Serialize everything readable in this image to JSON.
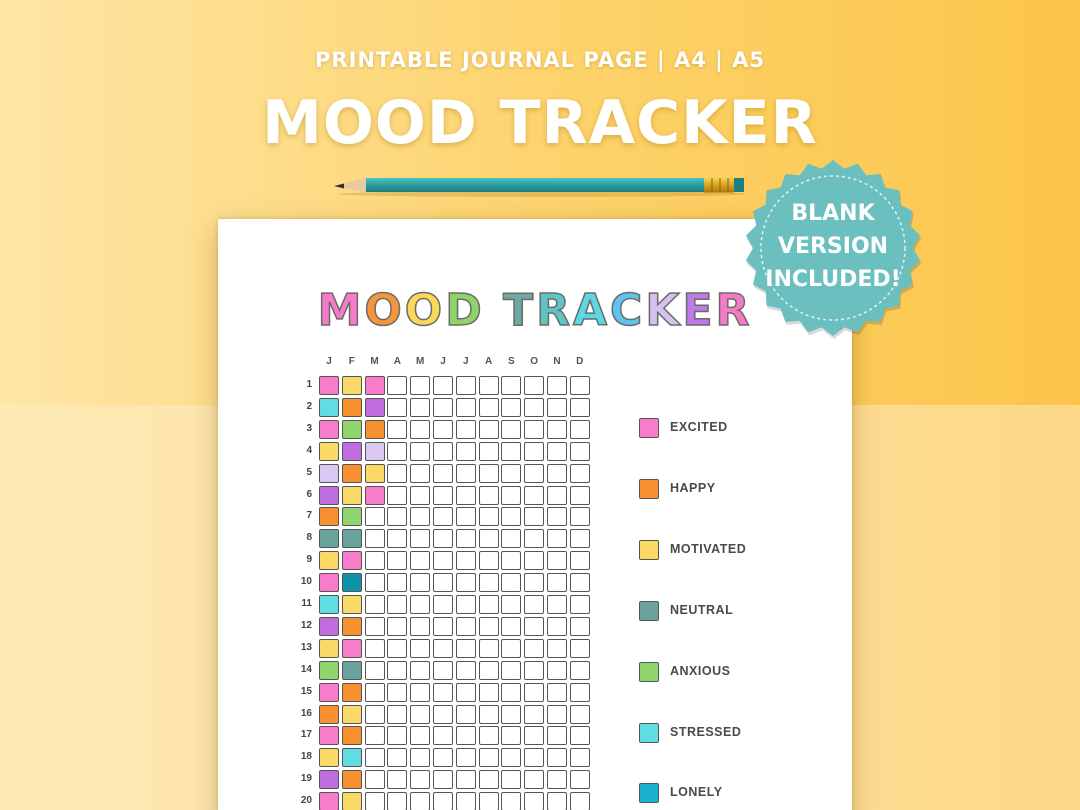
{
  "header": {
    "subtitle": "PRINTABLE JOURNAL PAGE | A4 | A5",
    "title": "MOOD TRACKER"
  },
  "badge": {
    "lines": [
      "BLANK",
      "VERSION",
      "INCLUDED!"
    ],
    "color": "#6bbfbf"
  },
  "sheet": {
    "title_letters": [
      {
        "char": "M",
        "color": "#f57ac8"
      },
      {
        "char": "O",
        "color": "#f7953a"
      },
      {
        "char": "O",
        "color": "#fad85a"
      },
      {
        "char": "D",
        "color": "#8ed46a"
      },
      {
        "char": " ",
        "color": "#ffffff"
      },
      {
        "char": "T",
        "color": "#6ea8a4"
      },
      {
        "char": "R",
        "color": "#5ec4c4"
      },
      {
        "char": "A",
        "color": "#5ad8e4"
      },
      {
        "char": "C",
        "color": "#5ec4ef"
      },
      {
        "char": "K",
        "color": "#d6c2f0"
      },
      {
        "char": "E",
        "color": "#c07ae8"
      },
      {
        "char": "R",
        "color": "#f57ac8"
      }
    ],
    "months": [
      "J",
      "F",
      "M",
      "A",
      "M",
      "J",
      "J",
      "A",
      "S",
      "O",
      "N",
      "D"
    ],
    "days": [
      "1",
      "2",
      "3",
      "4",
      "5",
      "6",
      "7",
      "8",
      "9",
      "10",
      "11",
      "12",
      "13",
      "14",
      "15",
      "16",
      "17",
      "18",
      "19",
      "20"
    ],
    "mood_colors": {
      "excited": "#f77cc9",
      "happy": "#f7902f",
      "motivated": "#fbd966",
      "neutral": "#6aa39d",
      "anxious": "#8fd46c",
      "stressed": "#5fdde3",
      "lonely": "#1ab2d0",
      "purple": "#c06de0",
      "lavender": "#d8c8f2",
      "teal": "#0e93a8"
    },
    "grid": [
      [
        "excited",
        "motivated",
        "excited"
      ],
      [
        "stressed",
        "happy",
        "purple"
      ],
      [
        "excited",
        "anxious",
        "happy"
      ],
      [
        "motivated",
        "purple",
        "lavender"
      ],
      [
        "lavender",
        "happy",
        "motivated"
      ],
      [
        "purple",
        "motivated",
        "excited"
      ],
      [
        "happy",
        "anxious"
      ],
      [
        "neutral",
        "neutral"
      ],
      [
        "motivated",
        "excited"
      ],
      [
        "excited",
        "teal"
      ],
      [
        "stressed",
        "motivated"
      ],
      [
        "purple",
        "happy"
      ],
      [
        "motivated",
        "excited"
      ],
      [
        "anxious",
        "neutral"
      ],
      [
        "excited",
        "happy"
      ],
      [
        "happy",
        "motivated"
      ],
      [
        "excited",
        "happy"
      ],
      [
        "motivated",
        "stressed"
      ],
      [
        "purple",
        "happy"
      ],
      [
        "excited",
        "motivated"
      ]
    ],
    "legend": [
      {
        "label": "EXCITED",
        "color": "#f77cc9"
      },
      {
        "label": "HAPPY",
        "color": "#f7902f"
      },
      {
        "label": "MOTIVATED",
        "color": "#fbd966"
      },
      {
        "label": "NEUTRAL",
        "color": "#6aa39d"
      },
      {
        "label": "ANXIOUS",
        "color": "#8fd46c"
      },
      {
        "label": "STRESSED",
        "color": "#5fdde3"
      },
      {
        "label": "LONELY",
        "color": "#1ab2d0"
      }
    ]
  },
  "pencil": {
    "body_color": "#2fa3a4",
    "ferrule_color": "#e0b020"
  }
}
